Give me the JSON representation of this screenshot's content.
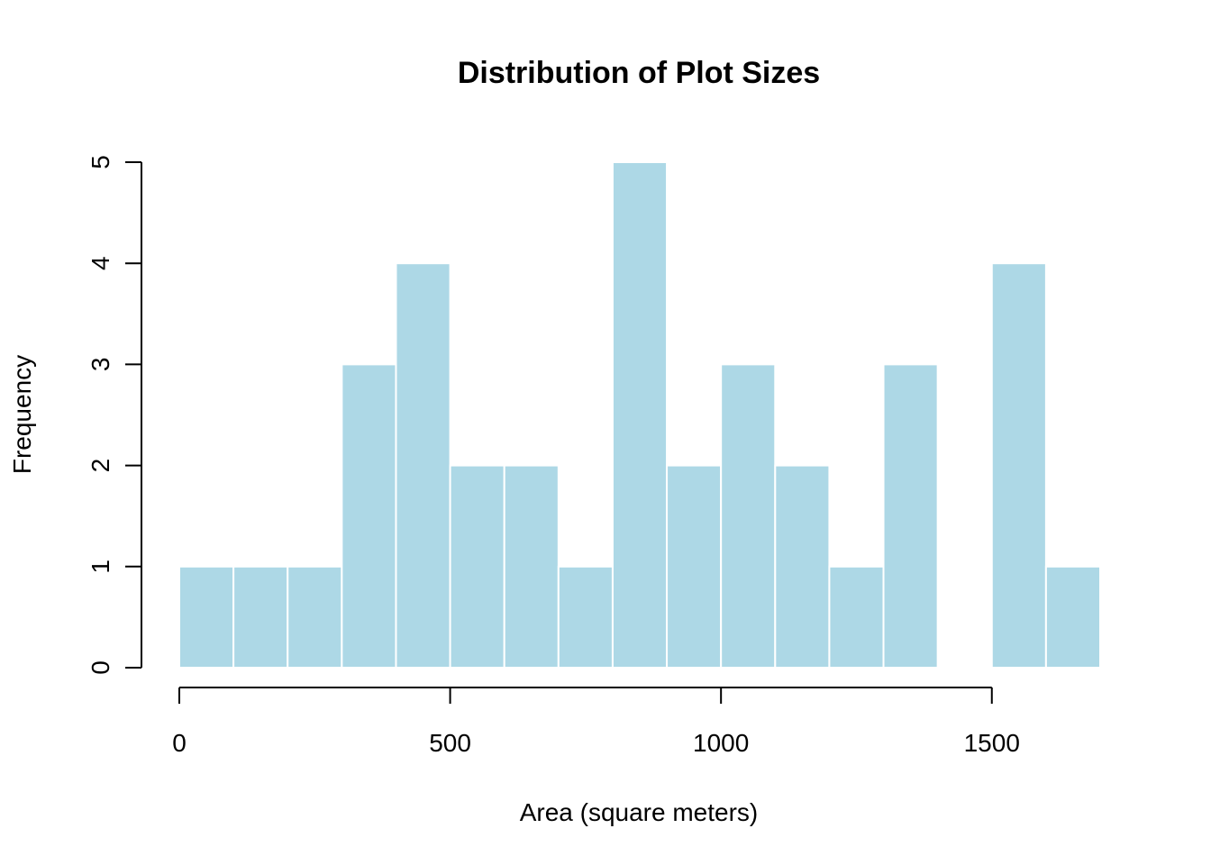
{
  "chart_data": {
    "type": "bar",
    "subtype": "histogram",
    "title": "Distribution of Plot Sizes",
    "xlabel": "Area (square meters)",
    "ylabel": "Frequency",
    "bin_width": 100,
    "bins": [
      {
        "from": 0,
        "to": 100,
        "count": 1
      },
      {
        "from": 100,
        "to": 200,
        "count": 1
      },
      {
        "from": 200,
        "to": 300,
        "count": 1
      },
      {
        "from": 300,
        "to": 400,
        "count": 3
      },
      {
        "from": 400,
        "to": 500,
        "count": 4
      },
      {
        "from": 500,
        "to": 600,
        "count": 2
      },
      {
        "from": 600,
        "to": 700,
        "count": 2
      },
      {
        "from": 700,
        "to": 800,
        "count": 1
      },
      {
        "from": 800,
        "to": 900,
        "count": 5
      },
      {
        "from": 900,
        "to": 1000,
        "count": 2
      },
      {
        "from": 1000,
        "to": 1100,
        "count": 3
      },
      {
        "from": 1100,
        "to": 1200,
        "count": 2
      },
      {
        "from": 1200,
        "to": 1300,
        "count": 1
      },
      {
        "from": 1300,
        "to": 1400,
        "count": 3
      },
      {
        "from": 1400,
        "to": 1500,
        "count": 0
      },
      {
        "from": 1500,
        "to": 1600,
        "count": 4
      },
      {
        "from": 1600,
        "to": 1700,
        "count": 1
      }
    ],
    "xlim": [
      0,
      1700
    ],
    "ylim": [
      0,
      5
    ],
    "x_ticks": [
      0,
      500,
      1000,
      1500
    ],
    "y_ticks": [
      0,
      1,
      2,
      3,
      4,
      5
    ],
    "x_tick_labels": [
      "0",
      "500",
      "1000",
      "1500"
    ],
    "y_tick_labels": [
      "0",
      "1",
      "2",
      "3",
      "4",
      "5"
    ],
    "bar_color": "#add8e6",
    "bar_border_color": "#ffffff",
    "grid": false,
    "legend": "none"
  }
}
